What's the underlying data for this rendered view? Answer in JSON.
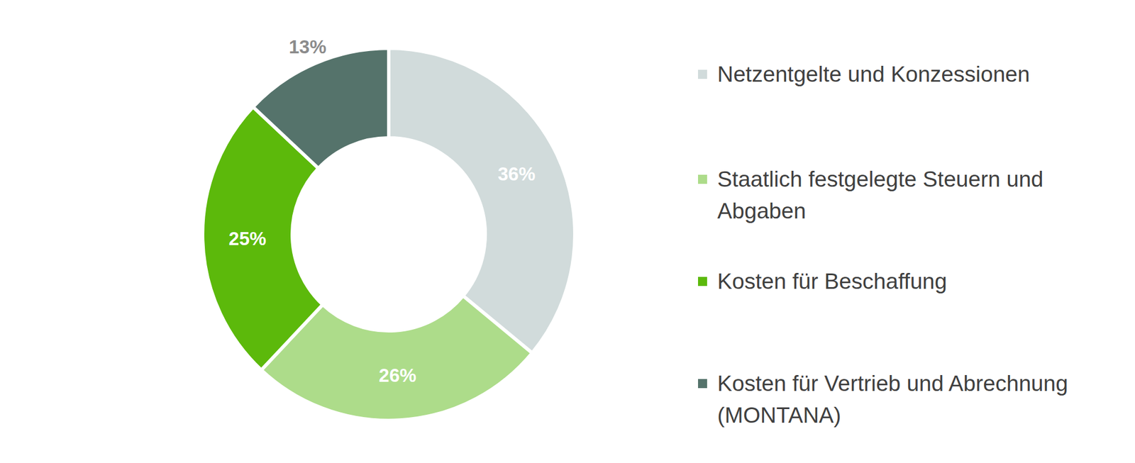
{
  "chart_data": {
    "type": "pie",
    "categories": [
      "Netzentgelte und Konzessionen",
      "Staatlich festgelegte Steuern und Abgaben",
      "Kosten für Beschaffung",
      "Kosten für Vertrieb und Abrechnung (MONTANA)"
    ],
    "values": [
      36,
      26,
      25,
      13
    ],
    "value_labels": [
      "36%",
      "26%",
      "25%",
      "13%"
    ],
    "colors": [
      "#d1dbdb",
      "#addc8a",
      "#5cb90b",
      "#55736b"
    ],
    "data_labels": true,
    "legend": "right"
  }
}
